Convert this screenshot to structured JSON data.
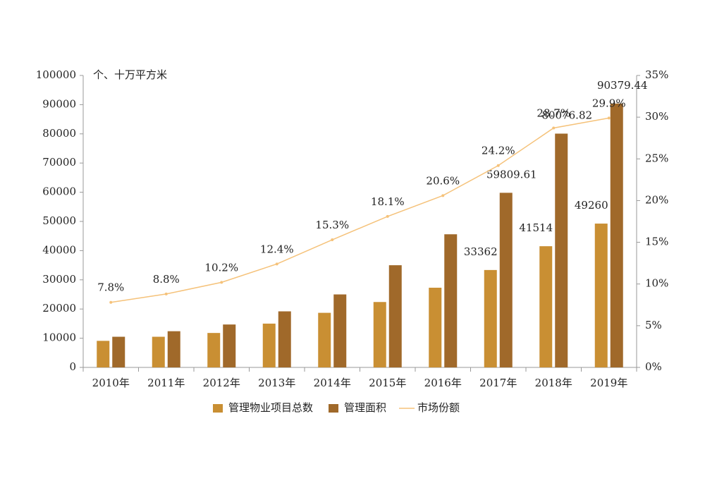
{
  "chart_data": {
    "type": "bar_line",
    "unit_label": "个、十万平方米",
    "categories": [
      "2010年",
      "2011年",
      "2012年",
      "2013年",
      "2014年",
      "2015年",
      "2016年",
      "2017年",
      "2018年",
      "2019年"
    ],
    "series": [
      {
        "name": "管理物业项目总数",
        "type": "bar",
        "color": "#c98f33",
        "values": [
          9100,
          10500,
          11800,
          15000,
          18700,
          22400,
          27300,
          33362,
          41514,
          49260
        ],
        "value_labels": [
          null,
          null,
          null,
          null,
          null,
          null,
          null,
          "33362",
          "41514",
          "49260"
        ]
      },
      {
        "name": "管理面积",
        "type": "bar",
        "color": "#a0692a",
        "values": [
          10500,
          12400,
          14700,
          19200,
          25000,
          35000,
          45600,
          59809.61,
          80076.82,
          90379.44
        ],
        "value_labels": [
          null,
          null,
          null,
          null,
          null,
          null,
          null,
          "59809.61",
          "80076.82",
          "90379.44"
        ]
      },
      {
        "name": "市场份额",
        "type": "line",
        "axis": "y2",
        "color": "#f5c27a",
        "values": [
          7.8,
          8.8,
          10.2,
          12.4,
          15.3,
          18.1,
          20.6,
          24.2,
          28.7,
          29.9
        ],
        "value_labels": [
          "7.8%",
          "8.8%",
          "10.2%",
          "12.4%",
          "15.3%",
          "18.1%",
          "20.6%",
          "24.2%",
          "28.7%",
          "29.9%"
        ]
      }
    ],
    "ylim": [
      0,
      100000
    ],
    "yticks": [
      0,
      10000,
      20000,
      30000,
      40000,
      50000,
      60000,
      70000,
      80000,
      90000,
      100000
    ],
    "y2lim": [
      0,
      35
    ],
    "y2ticks": [
      {
        "value": 0,
        "label": "0%"
      },
      {
        "value": 5,
        "label": "5%"
      },
      {
        "value": 10,
        "label": "10%"
      },
      {
        "value": 15,
        "label": "15%"
      },
      {
        "value": 20,
        "label": "20%"
      },
      {
        "value": 25,
        "label": "25%"
      },
      {
        "value": 30,
        "label": "30%"
      },
      {
        "value": 35,
        "label": "35%"
      }
    ],
    "legend": "bottom"
  }
}
